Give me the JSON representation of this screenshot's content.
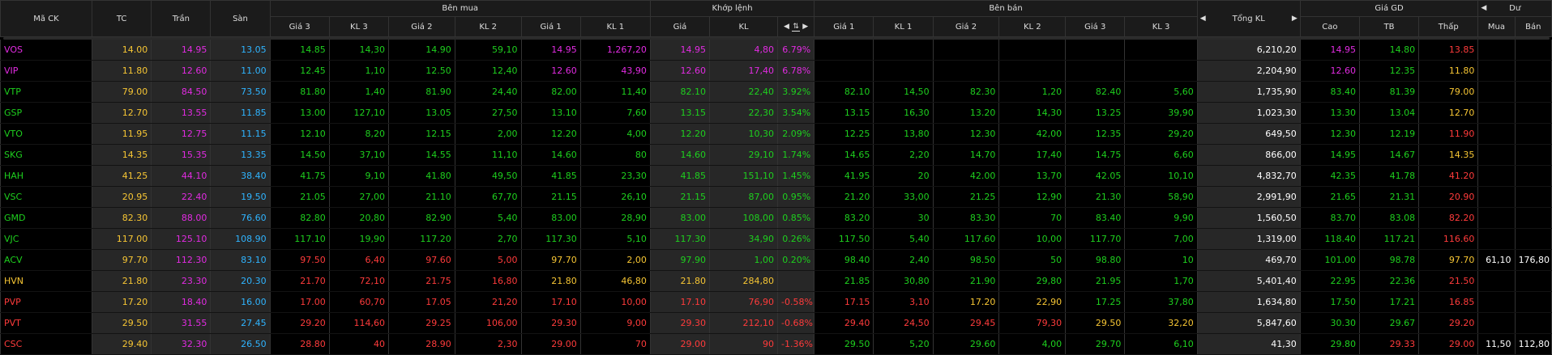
{
  "header": {
    "ma_ck": "Mã CK",
    "tc": "TC",
    "tran": "Trần",
    "san": "Sàn",
    "ben_mua": "Bên mua",
    "khop_lenh": "Khớp lệnh",
    "ben_ban": "Bên bán",
    "tong_kl": "Tổng KL",
    "gia_gd": "Giá GD",
    "du": "Dư",
    "buy_cols": [
      "Giá 3",
      "KL 3",
      "Giá 2",
      "KL 2",
      "Giá 1",
      "KL 1"
    ],
    "match_cols": [
      "Giá",
      "KL"
    ],
    "sell_cols": [
      "Giá 1",
      "KL 1",
      "Giá 2",
      "KL 2",
      "Giá 3",
      "KL 3"
    ],
    "gd_cols": [
      "Cao",
      "TB",
      "Thấp"
    ],
    "du_cols": [
      "Mua",
      "Bán"
    ]
  },
  "colors": {
    "ceil": "#e22be2",
    "up": "#1ed01e",
    "ref": "#f7c634",
    "down": "#ff3b3b",
    "floor": "#2fb4ff",
    "neutral": "#ffffff"
  },
  "rows": [
    {
      "sym": "VOS",
      "tc": "14.00",
      "tran": "14.95",
      "san": "13.05",
      "b3p": "14.85",
      "b3v": "14,30",
      "b2p": "14.90",
      "b2v": "59,10",
      "b1p": "14.95",
      "b1v": "1,267,20",
      "mp": "14.95",
      "mv": "4,80",
      "pct": "6.79%",
      "s1p": "",
      "s1v": "",
      "s2p": "",
      "s2v": "",
      "s3p": "",
      "s3v": "",
      "tot": "6,210,20",
      "hi": "14.95",
      "avg": "14.80",
      "lo": "13.85",
      "dm": "",
      "db": "",
      "c": {
        "sym": "ceil",
        "b3": "up",
        "b2": "up",
        "b1": "ceil",
        "m": "ceil",
        "s1": "up",
        "s2": "up",
        "s3": "up",
        "hi": "ceil",
        "avg": "up",
        "lo": "down"
      }
    },
    {
      "sym": "VIP",
      "tc": "11.80",
      "tran": "12.60",
      "san": "11.00",
      "b3p": "12.45",
      "b3v": "1,10",
      "b2p": "12.50",
      "b2v": "12,40",
      "b1p": "12.60",
      "b1v": "43,90",
      "mp": "12.60",
      "mv": "17,40",
      "pct": "6.78%",
      "s1p": "",
      "s1v": "",
      "s2p": "",
      "s2v": "",
      "s3p": "",
      "s3v": "",
      "tot": "2,204,90",
      "hi": "12.60",
      "avg": "12.35",
      "lo": "11.80",
      "dm": "",
      "db": "",
      "c": {
        "sym": "ceil",
        "b3": "up",
        "b2": "up",
        "b1": "ceil",
        "m": "ceil",
        "s1": "up",
        "s2": "up",
        "s3": "up",
        "hi": "ceil",
        "avg": "up",
        "lo": "ref"
      }
    },
    {
      "sym": "VTP",
      "tc": "79.00",
      "tran": "84.50",
      "san": "73.50",
      "b3p": "81.80",
      "b3v": "1,40",
      "b2p": "81.90",
      "b2v": "24,40",
      "b1p": "82.00",
      "b1v": "11,40",
      "mp": "82.10",
      "mv": "22,40",
      "pct": "3.92%",
      "s1p": "82.10",
      "s1v": "14,50",
      "s2p": "82.30",
      "s2v": "1,20",
      "s3p": "82.40",
      "s3v": "5,60",
      "tot": "1,735,90",
      "hi": "83.40",
      "avg": "81.39",
      "lo": "79.00",
      "dm": "",
      "db": "",
      "c": {
        "sym": "up",
        "b3": "up",
        "b2": "up",
        "b1": "up",
        "m": "up",
        "s1": "up",
        "s2": "up",
        "s3": "up",
        "hi": "up",
        "avg": "up",
        "lo": "ref"
      }
    },
    {
      "sym": "GSP",
      "tc": "12.70",
      "tran": "13.55",
      "san": "11.85",
      "b3p": "13.00",
      "b3v": "127,10",
      "b2p": "13.05",
      "b2v": "27,50",
      "b1p": "13.10",
      "b1v": "7,60",
      "mp": "13.15",
      "mv": "22,30",
      "pct": "3.54%",
      "s1p": "13.15",
      "s1v": "16,30",
      "s2p": "13.20",
      "s2v": "14,30",
      "s3p": "13.25",
      "s3v": "39,90",
      "tot": "1,023,30",
      "hi": "13.30",
      "avg": "13.04",
      "lo": "12.70",
      "dm": "",
      "db": "",
      "c": {
        "sym": "up",
        "b3": "up",
        "b2": "up",
        "b1": "up",
        "m": "up",
        "s1": "up",
        "s2": "up",
        "s3": "up",
        "hi": "up",
        "avg": "up",
        "lo": "ref"
      }
    },
    {
      "sym": "VTO",
      "tc": "11.95",
      "tran": "12.75",
      "san": "11.15",
      "b3p": "12.10",
      "b3v": "8,20",
      "b2p": "12.15",
      "b2v": "2,00",
      "b1p": "12.20",
      "b1v": "4,00",
      "mp": "12.20",
      "mv": "10,30",
      "pct": "2.09%",
      "s1p": "12.25",
      "s1v": "13,80",
      "s2p": "12.30",
      "s2v": "42,00",
      "s3p": "12.35",
      "s3v": "29,20",
      "tot": "649,50",
      "hi": "12.30",
      "avg": "12.19",
      "lo": "11.90",
      "dm": "",
      "db": "",
      "c": {
        "sym": "up",
        "b3": "up",
        "b2": "up",
        "b1": "up",
        "m": "up",
        "s1": "up",
        "s2": "up",
        "s3": "up",
        "hi": "up",
        "avg": "up",
        "lo": "down"
      }
    },
    {
      "sym": "SKG",
      "tc": "14.35",
      "tran": "15.35",
      "san": "13.35",
      "b3p": "14.50",
      "b3v": "37,10",
      "b2p": "14.55",
      "b2v": "11,10",
      "b1p": "14.60",
      "b1v": "80",
      "mp": "14.60",
      "mv": "29,10",
      "pct": "1.74%",
      "s1p": "14.65",
      "s1v": "2,20",
      "s2p": "14.70",
      "s2v": "17,40",
      "s3p": "14.75",
      "s3v": "6,60",
      "tot": "866,00",
      "hi": "14.95",
      "avg": "14.67",
      "lo": "14.35",
      "dm": "",
      "db": "",
      "c": {
        "sym": "up",
        "b3": "up",
        "b2": "up",
        "b1": "up",
        "m": "up",
        "s1": "up",
        "s2": "up",
        "s3": "up",
        "hi": "up",
        "avg": "up",
        "lo": "ref"
      }
    },
    {
      "sym": "HAH",
      "tc": "41.25",
      "tran": "44.10",
      "san": "38.40",
      "b3p": "41.75",
      "b3v": "9,10",
      "b2p": "41.80",
      "b2v": "49,50",
      "b1p": "41.85",
      "b1v": "23,30",
      "mp": "41.85",
      "mv": "151,10",
      "pct": "1.45%",
      "s1p": "41.95",
      "s1v": "20",
      "s2p": "42.00",
      "s2v": "13,70",
      "s3p": "42.05",
      "s3v": "10,10",
      "tot": "4,832,70",
      "hi": "42.35",
      "avg": "41.78",
      "lo": "41.20",
      "dm": "",
      "db": "",
      "c": {
        "sym": "up",
        "b3": "up",
        "b2": "up",
        "b1": "up",
        "m": "up",
        "s1": "up",
        "s2": "up",
        "s3": "up",
        "hi": "up",
        "avg": "up",
        "lo": "down"
      }
    },
    {
      "sym": "VSC",
      "tc": "20.95",
      "tran": "22.40",
      "san": "19.50",
      "b3p": "21.05",
      "b3v": "27,00",
      "b2p": "21.10",
      "b2v": "67,70",
      "b1p": "21.15",
      "b1v": "26,10",
      "mp": "21.15",
      "mv": "87,00",
      "pct": "0.95%",
      "s1p": "21.20",
      "s1v": "33,00",
      "s2p": "21.25",
      "s2v": "12,90",
      "s3p": "21.30",
      "s3v": "58,90",
      "tot": "2,991,90",
      "hi": "21.65",
      "avg": "21.31",
      "lo": "20.90",
      "dm": "",
      "db": "",
      "c": {
        "sym": "up",
        "b3": "up",
        "b2": "up",
        "b1": "up",
        "m": "up",
        "s1": "up",
        "s2": "up",
        "s3": "up",
        "hi": "up",
        "avg": "up",
        "lo": "down"
      }
    },
    {
      "sym": "GMD",
      "tc": "82.30",
      "tran": "88.00",
      "san": "76.60",
      "b3p": "82.80",
      "b3v": "20,80",
      "b2p": "82.90",
      "b2v": "5,40",
      "b1p": "83.00",
      "b1v": "28,90",
      "mp": "83.00",
      "mv": "108,00",
      "pct": "0.85%",
      "s1p": "83.20",
      "s1v": "30",
      "s2p": "83.30",
      "s2v": "70",
      "s3p": "83.40",
      "s3v": "9,90",
      "tot": "1,560,50",
      "hi": "83.70",
      "avg": "83.08",
      "lo": "82.20",
      "dm": "",
      "db": "",
      "c": {
        "sym": "up",
        "b3": "up",
        "b2": "up",
        "b1": "up",
        "m": "up",
        "s1": "up",
        "s2": "up",
        "s3": "up",
        "hi": "up",
        "avg": "up",
        "lo": "down"
      }
    },
    {
      "sym": "VJC",
      "tc": "117.00",
      "tran": "125.10",
      "san": "108.90",
      "b3p": "117.10",
      "b3v": "19,90",
      "b2p": "117.20",
      "b2v": "2,70",
      "b1p": "117.30",
      "b1v": "5,10",
      "mp": "117.30",
      "mv": "34,90",
      "pct": "0.26%",
      "s1p": "117.50",
      "s1v": "5,40",
      "s2p": "117.60",
      "s2v": "10,00",
      "s3p": "117.70",
      "s3v": "7,00",
      "tot": "1,319,00",
      "hi": "118.40",
      "avg": "117.21",
      "lo": "116.60",
      "dm": "",
      "db": "",
      "c": {
        "sym": "up",
        "b3": "up",
        "b2": "up",
        "b1": "up",
        "m": "up",
        "s1": "up",
        "s2": "up",
        "s3": "up",
        "hi": "up",
        "avg": "up",
        "lo": "down"
      }
    },
    {
      "sym": "ACV",
      "tc": "97.70",
      "tran": "112.30",
      "san": "83.10",
      "b3p": "97.50",
      "b3v": "6,40",
      "b2p": "97.60",
      "b2v": "5,00",
      "b1p": "97.70",
      "b1v": "2,00",
      "mp": "97.90",
      "mv": "1,00",
      "pct": "0.20%",
      "s1p": "98.40",
      "s1v": "2,40",
      "s2p": "98.50",
      "s2v": "50",
      "s3p": "98.80",
      "s3v": "10",
      "tot": "469,70",
      "hi": "101.00",
      "avg": "98.78",
      "lo": "97.70",
      "dm": "61,10",
      "db": "176,80",
      "c": {
        "sym": "up",
        "b3": "down",
        "b2": "down",
        "b1": "ref",
        "m": "up",
        "s1": "up",
        "s2": "up",
        "s3": "up",
        "hi": "up",
        "avg": "up",
        "lo": "ref"
      }
    },
    {
      "sym": "HVN",
      "tc": "21.80",
      "tran": "23.30",
      "san": "20.30",
      "b3p": "21.70",
      "b3v": "72,10",
      "b2p": "21.75",
      "b2v": "16,80",
      "b1p": "21.80",
      "b1v": "46,80",
      "mp": "21.80",
      "mv": "284,80",
      "pct": "",
      "s1p": "21.85",
      "s1v": "30,80",
      "s2p": "21.90",
      "s2v": "29,80",
      "s3p": "21.95",
      "s3v": "1,70",
      "tot": "5,401,40",
      "hi": "22.95",
      "avg": "22.36",
      "lo": "21.50",
      "dm": "",
      "db": "",
      "c": {
        "sym": "ref",
        "b3": "down",
        "b2": "down",
        "b1": "ref",
        "m": "ref",
        "s1": "up",
        "s2": "up",
        "s3": "up",
        "hi": "up",
        "avg": "up",
        "lo": "down"
      }
    },
    {
      "sym": "PVP",
      "tc": "17.20",
      "tran": "18.40",
      "san": "16.00",
      "b3p": "17.00",
      "b3v": "60,70",
      "b2p": "17.05",
      "b2v": "21,20",
      "b1p": "17.10",
      "b1v": "10,00",
      "mp": "17.10",
      "mv": "76,90",
      "pct": "-0.58%",
      "s1p": "17.15",
      "s1v": "3,10",
      "s2p": "17.20",
      "s2v": "22,90",
      "s3p": "17.25",
      "s3v": "37,80",
      "tot": "1,634,80",
      "hi": "17.50",
      "avg": "17.21",
      "lo": "16.85",
      "dm": "",
      "db": "",
      "c": {
        "sym": "down",
        "b3": "down",
        "b2": "down",
        "b1": "down",
        "m": "down",
        "s1": "down",
        "s2": "ref",
        "s3": "up",
        "hi": "up",
        "avg": "up",
        "lo": "down"
      }
    },
    {
      "sym": "PVT",
      "tc": "29.50",
      "tran": "31.55",
      "san": "27.45",
      "b3p": "29.20",
      "b3v": "114,60",
      "b2p": "29.25",
      "b2v": "106,00",
      "b1p": "29.30",
      "b1v": "9,00",
      "mp": "29.30",
      "mv": "212,10",
      "pct": "-0.68%",
      "s1p": "29.40",
      "s1v": "24,50",
      "s2p": "29.45",
      "s2v": "79,30",
      "s3p": "29.50",
      "s3v": "32,20",
      "tot": "5,847,60",
      "hi": "30.30",
      "avg": "29.67",
      "lo": "29.20",
      "dm": "",
      "db": "",
      "c": {
        "sym": "down",
        "b3": "down",
        "b2": "down",
        "b1": "down",
        "m": "down",
        "s1": "down",
        "s2": "down",
        "s3": "ref",
        "hi": "up",
        "avg": "up",
        "lo": "down"
      }
    },
    {
      "sym": "CSC",
      "tc": "29.40",
      "tran": "32.30",
      "san": "26.50",
      "b3p": "28.80",
      "b3v": "40",
      "b2p": "28.90",
      "b2v": "2,30",
      "b1p": "29.00",
      "b1v": "70",
      "mp": "29.00",
      "mv": "90",
      "pct": "-1.36%",
      "s1p": "29.50",
      "s1v": "5,20",
      "s2p": "29.60",
      "s2v": "4,00",
      "s3p": "29.70",
      "s3v": "6,10",
      "tot": "41,30",
      "hi": "29.80",
      "avg": "29.33",
      "lo": "29.00",
      "dm": "11,50",
      "db": "112,80",
      "c": {
        "sym": "down",
        "b3": "down",
        "b2": "down",
        "b1": "down",
        "m": "down",
        "s1": "up",
        "s2": "up",
        "s3": "up",
        "hi": "up",
        "avg": "down",
        "lo": "down"
      }
    }
  ]
}
